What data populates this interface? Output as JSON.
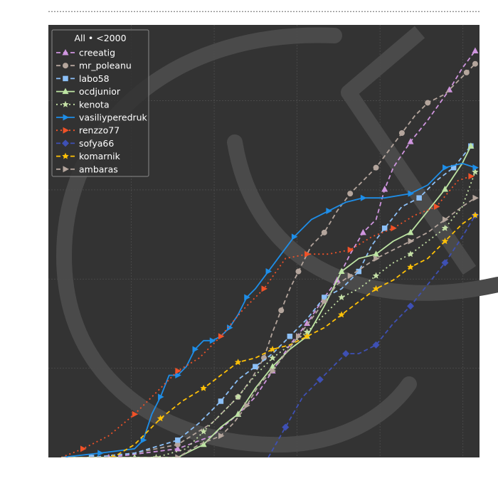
{
  "chart_data": {
    "type": "line",
    "title": "",
    "xlabel": "",
    "ylabel": "",
    "grid": true,
    "legend_placement": "top-left",
    "legend_title": "All • <2000",
    "xlim": [
      0,
      100
    ],
    "ylim": [
      0,
      100
    ],
    "colors": {
      "background": "#333333",
      "grid": "#4d4d4d",
      "watermark": "#4a4a4a"
    },
    "series": [
      {
        "name": "creeatig",
        "color": "#cf95df",
        "dash": "6,4",
        "marker": "triangle",
        "x": [
          3,
          14,
          22,
          30,
          38,
          44,
          48,
          52,
          56,
          60,
          64,
          67,
          70,
          73,
          76,
          78,
          80,
          84,
          88,
          93,
          96,
          99
        ],
        "y": [
          0,
          0,
          1,
          2,
          5,
          10,
          14,
          20,
          26,
          31,
          37,
          41,
          47,
          52,
          55,
          62,
          67,
          73,
          78,
          85,
          90,
          94
        ]
      },
      {
        "name": "mr_poleanu",
        "color": "#b4a59c",
        "dash": "6,4",
        "marker": "circle",
        "x": [
          3,
          10,
          20,
          30,
          38,
          44,
          47,
          50,
          52,
          54,
          56,
          58,
          61,
          64,
          67,
          70,
          73,
          76,
          79,
          82,
          85,
          88,
          92,
          97,
          99
        ],
        "y": [
          0,
          0,
          1,
          3,
          8,
          14,
          18,
          23,
          29,
          34,
          39,
          43,
          49,
          52,
          57,
          61,
          64,
          67,
          71,
          75,
          79,
          82,
          84,
          89,
          91
        ]
      },
      {
        "name": "labo58",
        "color": "#8cc0f8",
        "dash": "6,4",
        "marker": "square",
        "x": [
          3,
          10,
          20,
          30,
          35,
          40,
          44,
          48,
          52,
          56,
          60,
          64,
          68,
          72,
          75,
          78,
          82,
          86,
          90,
          94,
          98
        ],
        "y": [
          0,
          0,
          1,
          4,
          8,
          13,
          18,
          21,
          24,
          28,
          32,
          37,
          39,
          43,
          49,
          53,
          58,
          60,
          64,
          67,
          72
        ]
      },
      {
        "name": "ocdjunior",
        "color": "#bde4a3",
        "dash": "",
        "marker": "triangle",
        "x": [
          3,
          20,
          30,
          36,
          40,
          44,
          48,
          52,
          56,
          60,
          64,
          68,
          72,
          76,
          80,
          84,
          88,
          92,
          96,
          98
        ],
        "y": [
          0,
          0,
          0,
          3,
          7,
          10,
          16,
          21,
          25,
          28,
          35,
          43,
          46,
          47,
          50,
          52,
          57,
          62,
          68,
          72
        ]
      },
      {
        "name": "kenota",
        "color": "#c5e0a6",
        "dash": "2,4",
        "marker": "star",
        "x": [
          3,
          25,
          32,
          36,
          40,
          44,
          48,
          52,
          56,
          60,
          64,
          68,
          72,
          76,
          80,
          84,
          88,
          92,
          96,
          99
        ],
        "y": [
          0,
          0,
          2,
          6,
          10,
          14,
          19,
          23,
          26,
          29,
          33,
          37,
          39,
          42,
          45,
          47,
          50,
          53,
          58,
          66
        ]
      },
      {
        "name": "vasiliyperedruk",
        "color": "#1e8ee8",
        "dash": "",
        "marker": "right-triangle",
        "x": [
          3,
          12,
          20,
          22,
          24,
          26,
          28,
          30,
          32,
          34,
          36,
          38,
          40,
          42,
          44,
          46,
          48,
          51,
          54,
          57,
          61,
          65,
          69,
          73,
          78,
          84,
          88,
          92,
          96,
          99
        ],
        "y": [
          0,
          1,
          2,
          4,
          10,
          14,
          19,
          19,
          21,
          25,
          27,
          27,
          28,
          30,
          33,
          37,
          39,
          43,
          47,
          51,
          55,
          57,
          59,
          60,
          60,
          61,
          63,
          67,
          68,
          67
        ]
      },
      {
        "name": "renzzo77",
        "color": "#f05228",
        "dash": "2,4",
        "marker": "right-triangle",
        "x": [
          3,
          8,
          14,
          20,
          25,
          30,
          35,
          40,
          45,
          50,
          55,
          60,
          65,
          70,
          75,
          80,
          85,
          90,
          95,
          98
        ],
        "y": [
          0,
          2,
          5,
          10,
          15,
          20,
          23,
          28,
          34,
          39,
          46,
          47,
          47,
          48,
          51,
          53,
          56,
          58,
          64,
          65
        ]
      },
      {
        "name": "sofya66",
        "color": "#3e50b4",
        "dash": "6,4",
        "marker": "diamond",
        "x": [
          51,
          55,
          59,
          63,
          66,
          69,
          72,
          76,
          80,
          84,
          88,
          92,
          96,
          99
        ],
        "y": [
          0,
          7,
          14,
          18,
          21,
          24,
          24,
          26,
          31,
          35,
          40,
          45,
          51,
          56
        ]
      },
      {
        "name": "komarnik",
        "color": "#ffc107",
        "dash": "6,4",
        "marker": "star",
        "x": [
          3,
          15,
          20,
          26,
          31,
          36,
          40,
          44,
          48,
          52,
          56,
          60,
          64,
          68,
          72,
          76,
          80,
          84,
          88,
          92,
          96,
          99
        ],
        "y": [
          0,
          0,
          3,
          9,
          13,
          16,
          19,
          22,
          23,
          25,
          26,
          28,
          30,
          33,
          36,
          39,
          41,
          44,
          46,
          50,
          54,
          56
        ]
      },
      {
        "name": "ambaras",
        "color": "#b4a59c",
        "dash": "6,4",
        "marker": "right-triangle",
        "x": [
          3,
          30,
          35,
          40,
          43,
          46,
          49,
          52,
          55,
          58,
          61,
          64,
          67,
          70,
          73,
          76,
          80,
          84,
          88,
          92,
          96,
          99
        ],
        "y": [
          0,
          0,
          3,
          5,
          8,
          12,
          17,
          20,
          24,
          28,
          32,
          36,
          40,
          42,
          44,
          46,
          48,
          50,
          52,
          55,
          58,
          60
        ]
      }
    ]
  }
}
